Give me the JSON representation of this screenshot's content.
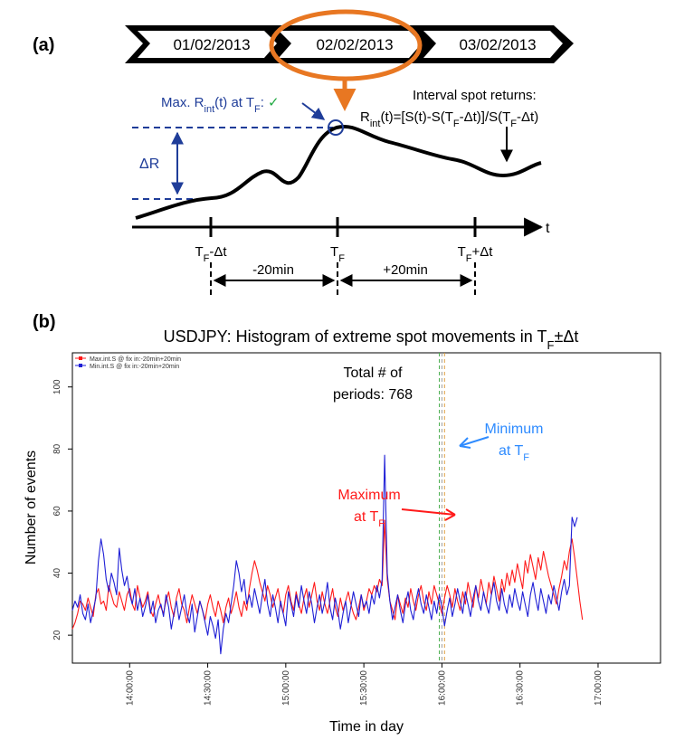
{
  "panel_a": {
    "label": "(a)",
    "dates": [
      "01/02/2013",
      "02/02/2013",
      "03/02/2013"
    ],
    "max_label": {
      "pre": "Max. R",
      "sub1": "int",
      "mid": "(t) at T",
      "sub2": "F",
      "post": ":",
      "check": "✓"
    },
    "interval_title": "Interval spot returns:",
    "formula": {
      "r": "R",
      "rsub": "int",
      "a": "(t)=[S(t)-S(T",
      "asub": "F",
      "b": "-Δt)]/S(T",
      "bsub": "F",
      "c": "-Δt)"
    },
    "delta_r": "ΔR",
    "t_axis": "t",
    "ticks": [
      {
        "base": "T",
        "sub": "F",
        "suffix": "-Δt"
      },
      {
        "base": "T",
        "sub": "F",
        "suffix": ""
      },
      {
        "base": "T",
        "sub": "F",
        "suffix": "+Δt"
      }
    ],
    "span_left": "-20min",
    "span_right": "+20min",
    "colors": {
      "accent": "#e87722",
      "navy": "#1f3d99",
      "check": "#22aa44"
    }
  },
  "panel_b": {
    "label": "(b)",
    "title": {
      "pre": "USDJPY: Histogram of extreme spot movements in T",
      "sub": "F",
      "post": "±Δt"
    },
    "total_line1": "Total # of",
    "total_line2": "periods: 768",
    "min_ann": {
      "line1": "Minimum",
      "line2": "at T",
      "sub": "F"
    },
    "max_ann": {
      "line1": "Maximum",
      "line2": "at T",
      "sub": "F"
    },
    "colors": {
      "max": "#ff1a1a",
      "min": "#1f1fd6",
      "min_ann": "#2e8bff"
    }
  },
  "chart_data": {
    "type": "line",
    "title": "USDJPY: Histogram of extreme spot movements in TF±Δt",
    "xlabel": "Time in day",
    "ylabel": "Number of events",
    "x_ticks": [
      "14:00:00",
      "14:30:00",
      "15:00:00",
      "15:30:00",
      "16:00:00",
      "16:30:00",
      "17:00:00"
    ],
    "y_ticks": [
      20,
      40,
      60,
      80,
      100
    ],
    "xlim_minutes": [
      -22,
      204
    ],
    "ylim": [
      11,
      111
    ],
    "x_start_minutes": -22,
    "x_step_minutes": 1,
    "legend_position": "top-left",
    "vlines_minutes": [
      119,
      120,
      121
    ],
    "series": [
      {
        "name": "Max.int.S @ fix in:-20min+20min",
        "color": "#ff1a1a",
        "values": [
          22,
          24,
          27,
          31,
          30,
          28,
          32,
          29,
          26,
          33,
          35,
          30,
          31,
          28,
          36,
          33,
          30,
          29,
          34,
          31,
          28,
          33,
          35,
          30,
          28,
          36,
          32,
          29,
          31,
          34,
          28,
          26,
          30,
          33,
          29,
          27,
          31,
          34,
          29,
          26,
          32,
          35,
          30,
          28,
          24,
          29,
          33,
          30,
          27,
          31,
          28,
          25,
          30,
          33,
          29,
          26,
          31,
          28,
          24,
          29,
          32,
          27,
          30,
          34,
          29,
          26,
          31,
          28,
          35,
          40,
          44,
          41,
          37,
          34,
          31,
          36,
          33,
          29,
          32,
          35,
          30,
          27,
          33,
          36,
          31,
          28,
          34,
          30,
          27,
          32,
          35,
          29,
          33,
          37,
          31,
          28,
          34,
          30,
          27,
          31,
          35,
          29,
          26,
          32,
          28,
          31,
          34,
          30,
          27,
          25,
          29,
          33,
          28,
          31,
          35,
          33,
          36,
          34,
          38,
          36,
          57,
          38,
          31,
          28,
          25,
          33,
          30,
          27,
          32,
          29,
          35,
          31,
          28,
          33,
          36,
          31,
          28,
          34,
          30,
          36,
          33,
          30,
          27,
          32,
          36,
          33,
          29,
          35,
          31,
          28,
          34,
          30,
          37,
          33,
          29,
          36,
          32,
          38,
          34,
          30,
          37,
          33,
          39,
          35,
          31,
          38,
          34,
          40,
          36,
          41,
          37,
          43,
          39,
          35,
          44,
          40,
          46,
          42,
          38,
          45,
          41,
          47,
          43,
          39,
          36,
          33,
          30,
          35,
          39,
          44,
          41,
          47,
          51,
          45,
          38,
          31,
          25
        ]
      },
      {
        "name": "Min.int.S @ fix in:-20min+20min",
        "color": "#1f1fd6",
        "values": [
          28,
          31,
          29,
          33,
          27,
          25,
          30,
          24,
          28,
          32,
          44,
          51,
          46,
          38,
          34,
          40,
          37,
          33,
          48,
          41,
          36,
          39,
          33,
          30,
          35,
          28,
          32,
          26,
          29,
          33,
          27,
          31,
          24,
          28,
          30,
          26,
          33,
          29,
          22,
          27,
          31,
          25,
          29,
          33,
          27,
          24,
          30,
          21,
          26,
          31,
          28,
          24,
          20,
          26,
          23,
          19,
          25,
          14,
          22,
          27,
          24,
          30,
          36,
          44,
          40,
          34,
          38,
          30,
          33,
          29,
          35,
          31,
          27,
          33,
          38,
          30,
          26,
          33,
          29,
          24,
          31,
          27,
          23,
          34,
          30,
          26,
          33,
          29,
          36,
          31,
          27,
          34,
          30,
          24,
          29,
          33,
          27,
          31,
          37,
          29,
          25,
          32,
          28,
          22,
          27,
          31,
          24,
          29,
          34,
          30,
          26,
          33,
          29,
          31,
          27,
          33,
          30,
          36,
          32,
          38,
          78,
          40,
          31,
          25,
          29,
          33,
          28,
          24,
          30,
          34,
          28,
          25,
          31,
          35,
          30,
          27,
          33,
          29,
          25,
          31,
          27,
          33,
          29,
          23,
          28,
          32,
          26,
          30,
          35,
          31,
          27,
          34,
          30,
          26,
          32,
          36,
          31,
          28,
          34,
          30,
          27,
          33,
          37,
          31,
          28,
          35,
          30,
          27,
          33,
          29,
          35,
          31,
          28,
          34,
          30,
          26,
          33,
          37,
          32,
          28,
          35,
          31,
          27,
          33,
          30,
          36,
          32,
          28,
          34,
          38,
          33,
          36,
          58,
          55,
          58
        ]
      }
    ]
  }
}
